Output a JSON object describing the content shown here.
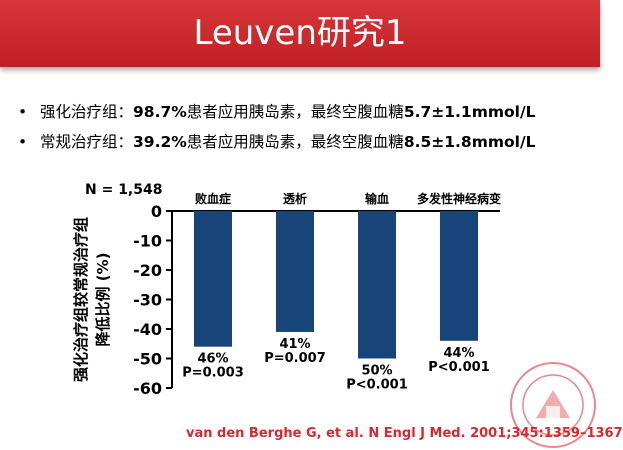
{
  "title": "Leuven研究1",
  "bullets": [
    {
      "dot": "•",
      "prefix": "强化治疗组：",
      "pct": "98.7%",
      "mid": "患者应用胰岛素，最终空腹血糖",
      "glucose": "5.7±1.1mmol/L"
    },
    {
      "dot": "•",
      "prefix": "常规治疗组：",
      "pct": "39.2%",
      "mid": "患者应用胰岛素，最终空腹血糖",
      "glucose": "8.5±1.8mmol/L"
    }
  ],
  "n_label": "N = 1,548",
  "citation": "van den Berghe G, et al. N Engl J Med. 2001;345:1359–1367",
  "colors": {
    "title_bg": "#c81f25",
    "bar": "#17457a",
    "citation": "#d7282f"
  },
  "chart_data": {
    "type": "bar",
    "title": "",
    "categories": [
      "败血症",
      "透析",
      "输血",
      "多发性神经病变"
    ],
    "values": [
      -46,
      -41,
      -50,
      -44
    ],
    "value_labels": [
      "46%",
      "41%",
      "50%",
      "44%"
    ],
    "p_values": [
      "P=0.003",
      "P=0.007",
      "P<0.001",
      "P<0.001"
    ],
    "ylabel_lines": [
      "强化治疗组较常规治疗组",
      "降低比例 (%)"
    ],
    "ylim": [
      -60,
      0
    ],
    "yticks": [
      0,
      -10,
      -20,
      -30,
      -40,
      -50,
      -60
    ],
    "ytick_labels": [
      "0",
      "-10",
      "-20",
      "-30",
      "-40",
      "-50",
      "-60"
    ],
    "category_axis_position": "top",
    "grid": false,
    "legend": "none"
  }
}
